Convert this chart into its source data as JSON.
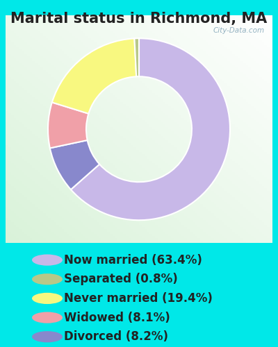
{
  "title": "Marital status in Richmond, MA",
  "slices": [
    63.4,
    8.2,
    8.1,
    19.4,
    0.8
  ],
  "labels": [
    "Now married (63.4%)",
    "Separated (0.8%)",
    "Never married (19.4%)",
    "Widowed (8.1%)",
    "Divorced (8.2%)"
  ],
  "legend_labels": [
    "Now married (63.4%)",
    "Separated (0.8%)",
    "Never married (19.4%)",
    "Widowed (8.1%)",
    "Divorced (8.2%)"
  ],
  "slice_colors": [
    "#c8b8e8",
    "#8888cc",
    "#f0a0a8",
    "#f8f880",
    "#b8c888"
  ],
  "legend_colors": [
    "#c8b8e8",
    "#b8c888",
    "#f8f880",
    "#f0a0a8",
    "#8888cc"
  ],
  "bg_outer": "#00e8e8",
  "watermark": "City-Data.com",
  "title_fontsize": 15,
  "legend_fontsize": 12,
  "donut_width": 0.42
}
